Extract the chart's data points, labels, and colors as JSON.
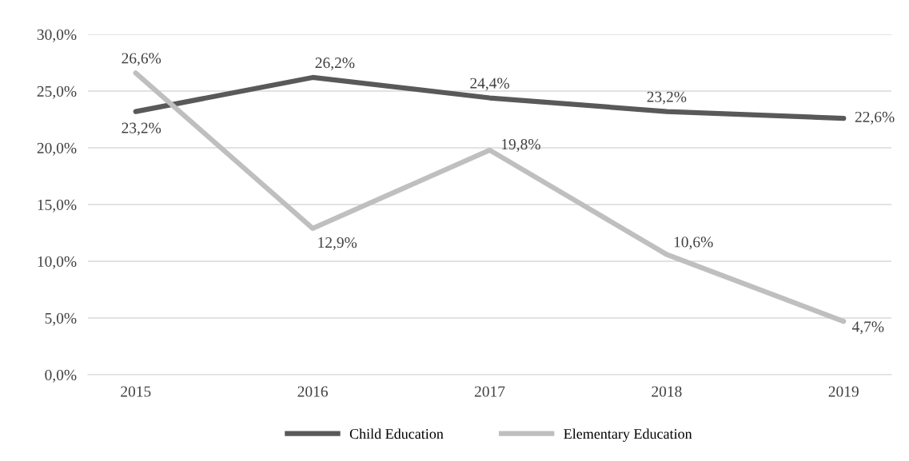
{
  "chart_data": {
    "type": "line",
    "categories": [
      "2015",
      "2016",
      "2017",
      "2018",
      "2019"
    ],
    "series": [
      {
        "name": "Child Education",
        "color": "#595959",
        "values": [
          23.2,
          26.2,
          24.4,
          23.2,
          22.6
        ],
        "value_labels": [
          "23,2%",
          "26,2%",
          "24,4%",
          "23,2%",
          "22,6%"
        ]
      },
      {
        "name": "Elementary Education",
        "color": "#bfbfbf",
        "values": [
          26.6,
          12.9,
          19.8,
          10.6,
          4.7
        ],
        "value_labels": [
          "26,6%",
          "12,9%",
          "19,8%",
          "10,6%",
          "4,7%"
        ]
      }
    ],
    "ylim": [
      0,
      30
    ],
    "yticks": [
      {
        "value": 0,
        "label": "0,0%"
      },
      {
        "value": 5,
        "label": "5,0%"
      },
      {
        "value": 10,
        "label": "10,0%"
      },
      {
        "value": 15,
        "label": "15,0%"
      },
      {
        "value": 20,
        "label": "20,0%"
      },
      {
        "value": 25,
        "label": "25,0%"
      },
      {
        "value": 30,
        "label": "30,0%"
      }
    ],
    "grid": "y",
    "legend": "bottom",
    "marker": "none",
    "line_style": "solid"
  }
}
